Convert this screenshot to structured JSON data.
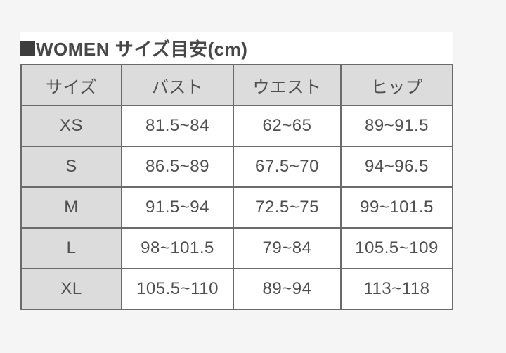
{
  "page": {
    "background_color": "#f5f5f6",
    "card_color": "#ffffff",
    "border_color": "#6b6b6b",
    "header_cell_color": "#dcdcdc",
    "text_color": "#4f4f4f"
  },
  "title": {
    "bullet_icon": "black-square",
    "text": "WOMEN サイズ目安(cm)"
  },
  "chart_data": {
    "type": "table",
    "title": "WOMEN サイズ目安(cm)",
    "unit": "cm",
    "columns": [
      "サイズ",
      "バスト",
      "ウエスト",
      "ヒップ"
    ],
    "rows": [
      [
        "XS",
        "81.5~84",
        "62~65",
        "89~91.5"
      ],
      [
        "S",
        "86.5~89",
        "67.5~70",
        "94~96.5"
      ],
      [
        "M",
        "91.5~94",
        "72.5~75",
        "99~101.5"
      ],
      [
        "L",
        "98~101.5",
        "79~84",
        "105.5~109"
      ],
      [
        "XL",
        "105.5~110",
        "89~94",
        "113~118"
      ]
    ]
  }
}
